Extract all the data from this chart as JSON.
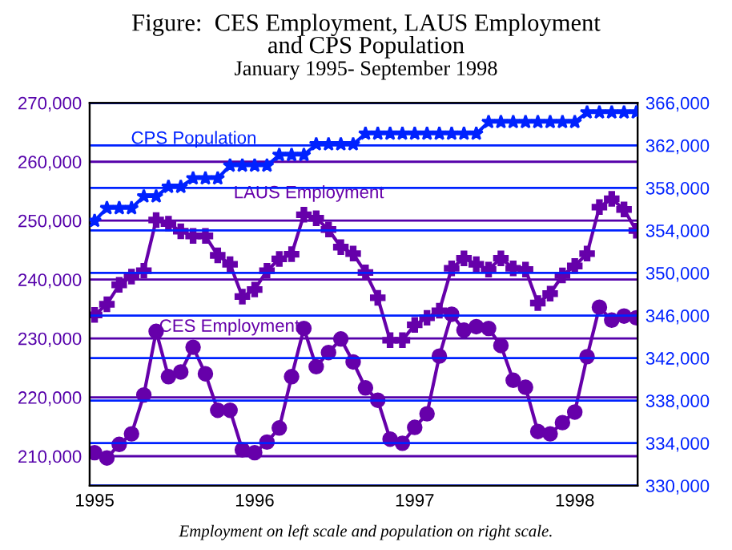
{
  "chart_data": {
    "type": "line",
    "title": "Figure:  CES Employment, LAUS Employment\nand CPS Population",
    "subtitle": "January 1995- September 1998",
    "annotations": [
      "Employment on left scale and population on right scale."
    ],
    "categories": [
      "1995",
      null,
      null,
      null,
      null,
      null,
      null,
      null,
      null,
      null,
      null,
      null,
      null,
      "1996",
      null,
      null,
      null,
      null,
      null,
      null,
      null,
      null,
      null,
      null,
      null,
      null,
      "1997",
      null,
      null,
      null,
      null,
      null,
      null,
      null,
      null,
      null,
      null,
      null,
      null,
      "1998",
      null,
      null,
      null,
      null,
      null
    ],
    "ylim": [
      205000,
      270000
    ],
    "yticks": [
      {
        "value": 210000,
        "label": "210,000"
      },
      {
        "value": 220000,
        "label": "220,000"
      },
      {
        "value": 230000,
        "label": "230,000"
      },
      {
        "value": 240000,
        "label": "240,000"
      },
      {
        "value": 250000,
        "label": "250,000"
      },
      {
        "value": 260000,
        "label": "260,000"
      },
      {
        "value": 270000,
        "label": "270,000"
      }
    ],
    "y2lim": [
      330000,
      366000
    ],
    "y2ticks": [
      {
        "value": 330000,
        "label": "330,000"
      },
      {
        "value": 334000,
        "label": "334,000"
      },
      {
        "value": 338000,
        "label": "338,000"
      },
      {
        "value": 342000,
        "label": "342,000"
      },
      {
        "value": 346000,
        "label": "346,000"
      },
      {
        "value": 350000,
        "label": "350,000"
      },
      {
        "value": 354000,
        "label": "354,000"
      },
      {
        "value": 358000,
        "label": "358,000"
      },
      {
        "value": 362000,
        "label": "362,000"
      },
      {
        "value": 366000,
        "label": "366,000"
      }
    ],
    "grid": "y",
    "legend": false,
    "line_style": "solid",
    "series": [
      {
        "name": "CPS Population",
        "color": "#0022ff",
        "axis": "y2",
        "marker": "star",
        "values": [
          354900,
          356100,
          356100,
          356100,
          357200,
          357200,
          358100,
          358100,
          358900,
          358900,
          358900,
          360100,
          360100,
          360100,
          360100,
          361100,
          361100,
          361100,
          362100,
          362100,
          362100,
          362100,
          363100,
          363100,
          363100,
          363100,
          363100,
          363100,
          363100,
          363100,
          363100,
          363100,
          364200,
          364200,
          364200,
          364200,
          364200,
          364200,
          364200,
          364200,
          365100,
          365100,
          365100,
          365100,
          365100
        ]
      },
      {
        "name": "LAUS Employment",
        "color": "#6600aa",
        "marker": "cross",
        "values": [
          234000,
          235800,
          239100,
          240500,
          241500,
          250100,
          249500,
          248200,
          247400,
          247400,
          244100,
          242600,
          237100,
          238300,
          241500,
          243500,
          244300,
          251000,
          250400,
          248500,
          245500,
          244400,
          241200,
          236900,
          229700,
          229700,
          232300,
          233500,
          234700,
          241900,
          243600,
          242600,
          241700,
          243600,
          241900,
          241700,
          236000,
          237600,
          240700,
          242300,
          244400,
          252300,
          253700,
          251900,
          248300
        ]
      },
      {
        "name": "CES Employment",
        "color": "#6600aa",
        "marker": "circle",
        "values": [
          210600,
          209700,
          212000,
          213800,
          220400,
          231200,
          223500,
          224300,
          228500,
          224000,
          217800,
          217800,
          211100,
          210600,
          212400,
          214800,
          223500,
          231700,
          225200,
          227600,
          229900,
          226000,
          221600,
          219500,
          212900,
          212200,
          214900,
          217200,
          227000,
          234100,
          231400,
          232000,
          231700,
          228800,
          222900,
          221700,
          214200,
          213800,
          215700,
          217500,
          226900,
          235300,
          233100,
          233800,
          233500
        ]
      }
    ]
  }
}
